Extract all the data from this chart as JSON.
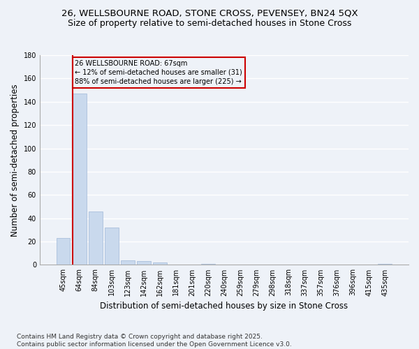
{
  "title": "26, WELLSBOURNE ROAD, STONE CROSS, PEVENSEY, BN24 5QX",
  "subtitle": "Size of property relative to semi-detached houses in Stone Cross",
  "xlabel": "Distribution of semi-detached houses by size in Stone Cross",
  "ylabel": "Number of semi-detached properties",
  "categories": [
    "45sqm",
    "64sqm",
    "84sqm",
    "103sqm",
    "123sqm",
    "142sqm",
    "162sqm",
    "181sqm",
    "201sqm",
    "220sqm",
    "240sqm",
    "259sqm",
    "279sqm",
    "298sqm",
    "318sqm",
    "337sqm",
    "357sqm",
    "376sqm",
    "396sqm",
    "415sqm",
    "435sqm"
  ],
  "values": [
    23,
    147,
    46,
    32,
    4,
    3,
    2,
    0,
    0,
    1,
    0,
    0,
    0,
    0,
    0,
    0,
    0,
    0,
    0,
    0,
    1
  ],
  "bar_color": "#c9d9ed",
  "bar_edge_color": "#a0b8d8",
  "subject_line_color": "#cc0000",
  "annotation_title": "26 WELLSBOURNE ROAD: 67sqm",
  "annotation_line1": "← 12% of semi-detached houses are smaller (31)",
  "annotation_line2": "88% of semi-detached houses are larger (225) →",
  "annotation_box_color": "#cc0000",
  "ylim": [
    0,
    180
  ],
  "yticks": [
    0,
    20,
    40,
    60,
    80,
    100,
    120,
    140,
    160,
    180
  ],
  "footer_line1": "Contains HM Land Registry data © Crown copyright and database right 2025.",
  "footer_line2": "Contains public sector information licensed under the Open Government Licence v3.0.",
  "bg_color": "#eef2f8",
  "grid_color": "#ffffff",
  "title_fontsize": 9.5,
  "subtitle_fontsize": 9,
  "axis_label_fontsize": 8.5,
  "tick_fontsize": 7,
  "footer_fontsize": 6.5,
  "annotation_fontsize": 7
}
